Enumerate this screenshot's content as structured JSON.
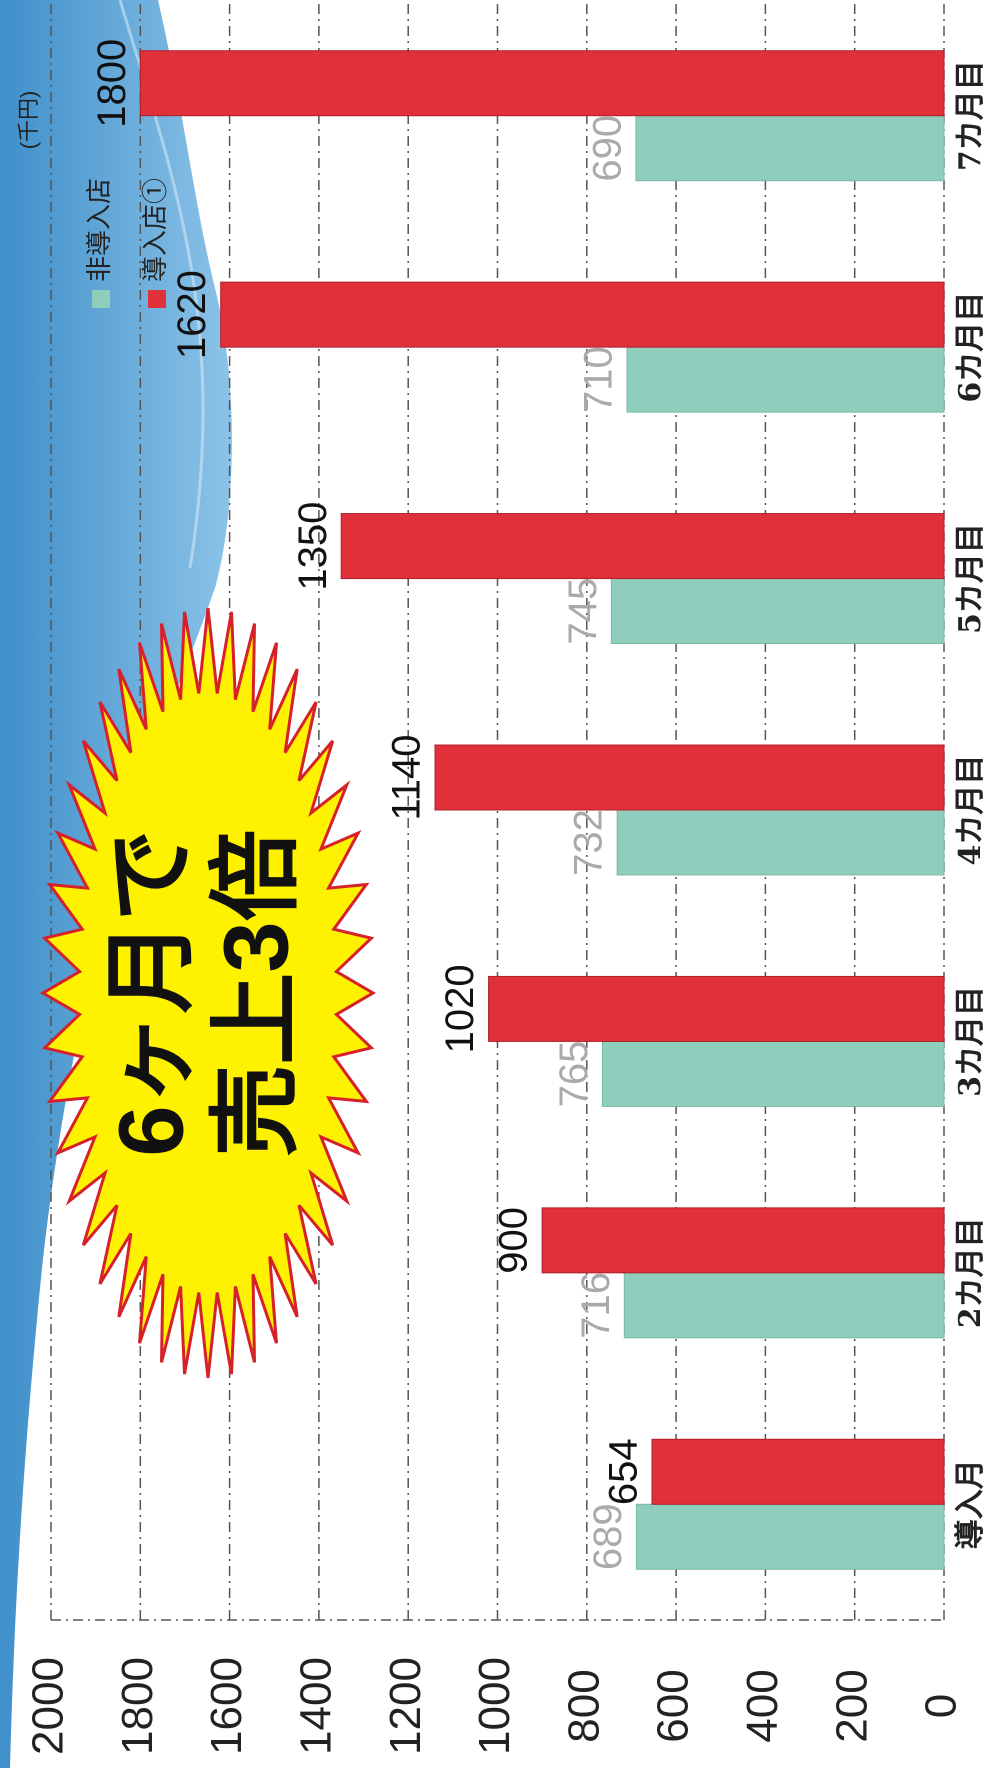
{
  "chart_data": {
    "type": "bar",
    "unit_label": "(千円)",
    "annotation_lines": [
      "6ヶ月で",
      "売上3倍"
    ],
    "categories": [
      "導入月",
      "2カ月目",
      "3カ月目",
      "4カ月目",
      "5カ月目",
      "6カ月目",
      "7カ月目"
    ],
    "series": [
      {
        "name": "非導入店",
        "color": "#8fcdbd",
        "label_color": "#aaaaaa",
        "values": [
          689,
          716,
          765,
          732,
          745,
          710,
          690
        ]
      },
      {
        "name": "導入店①",
        "color": "#e0303a",
        "label_color": "#111111",
        "values": [
          654,
          900,
          1020,
          1140,
          1350,
          1620,
          1800
        ]
      }
    ],
    "ylim": [
      0,
      2000
    ],
    "yticks": [
      0,
      200,
      400,
      600,
      800,
      1000,
      1200,
      1400,
      1600,
      1800,
      2000
    ],
    "grid": true
  }
}
